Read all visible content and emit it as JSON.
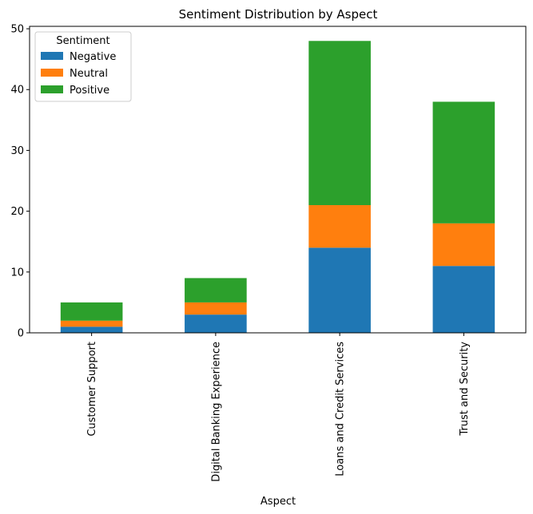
{
  "chart_data": {
    "type": "bar",
    "stacked": true,
    "title": "Sentiment Distribution by Aspect",
    "xlabel": "Aspect",
    "ylabel": "",
    "categories": [
      "Customer Support",
      "Digital Banking Experience",
      "Loans and Credit Services",
      "Trust and Security"
    ],
    "series": [
      {
        "name": "Negative",
        "values": [
          1,
          3,
          14,
          11
        ],
        "color": "#1f77b4"
      },
      {
        "name": "Neutral",
        "values": [
          1,
          2,
          7,
          7
        ],
        "color": "#ff7f0e"
      },
      {
        "name": "Positive",
        "values": [
          3,
          4,
          27,
          20
        ],
        "color": "#2ca02c"
      }
    ],
    "ylim": [
      0,
      50.4
    ],
    "yticks": [
      0,
      10,
      20,
      30,
      40,
      50
    ],
    "legend": {
      "title": "Sentiment",
      "placement": "top-left"
    },
    "grid": false
  }
}
